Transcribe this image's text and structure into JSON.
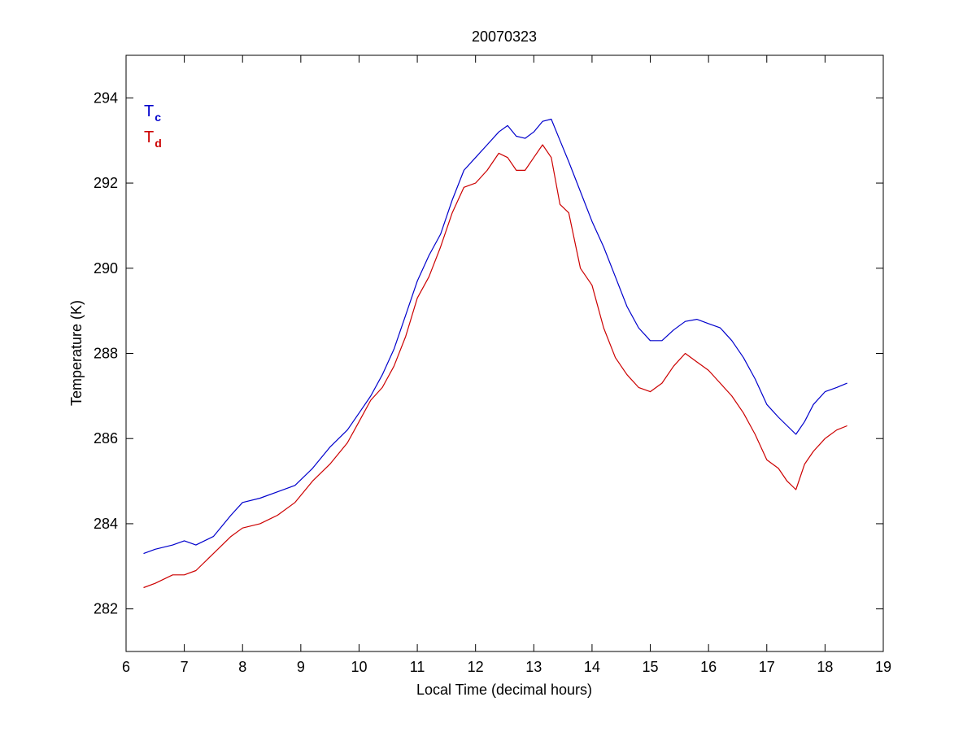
{
  "chart_data": {
    "type": "line",
    "title": "20070323",
    "xlabel": "Local Time (decimal hours)",
    "ylabel": "Temperature (K)",
    "xlim": [
      6,
      19
    ],
    "ylim": [
      281,
      295
    ],
    "xticks": [
      6,
      7,
      8,
      9,
      10,
      11,
      12,
      13,
      14,
      15,
      16,
      17,
      18,
      19
    ],
    "yticks": [
      282,
      284,
      286,
      288,
      290,
      292,
      294
    ],
    "grid": false,
    "legend_placement": "top-left",
    "series": [
      {
        "name": "Tc",
        "legend_main": "T",
        "legend_sub": "c",
        "color": "#0000cc",
        "x": [
          6.3,
          6.5,
          6.8,
          7.0,
          7.2,
          7.5,
          7.8,
          8.0,
          8.3,
          8.6,
          8.9,
          9.2,
          9.5,
          9.8,
          10.0,
          10.2,
          10.4,
          10.6,
          10.8,
          11.0,
          11.2,
          11.4,
          11.6,
          11.8,
          12.0,
          12.2,
          12.4,
          12.55,
          12.7,
          12.85,
          13.0,
          13.15,
          13.3,
          13.45,
          13.6,
          13.8,
          14.0,
          14.2,
          14.4,
          14.6,
          14.8,
          15.0,
          15.2,
          15.4,
          15.6,
          15.8,
          16.0,
          16.2,
          16.4,
          16.6,
          16.8,
          17.0,
          17.2,
          17.35,
          17.5,
          17.65,
          17.8,
          18.0,
          18.2,
          18.38
        ],
        "y": [
          283.3,
          283.4,
          283.5,
          283.6,
          283.5,
          283.7,
          284.2,
          284.5,
          284.6,
          284.75,
          284.9,
          285.3,
          285.8,
          286.2,
          286.6,
          287.0,
          287.5,
          288.1,
          288.9,
          289.7,
          290.3,
          290.8,
          291.6,
          292.3,
          292.6,
          292.9,
          293.2,
          293.35,
          293.1,
          293.05,
          293.2,
          293.45,
          293.5,
          293.0,
          292.5,
          291.8,
          291.1,
          290.5,
          289.8,
          289.1,
          288.6,
          288.3,
          288.3,
          288.55,
          288.75,
          288.8,
          288.7,
          288.6,
          288.3,
          287.9,
          287.4,
          286.8,
          286.5,
          286.3,
          286.1,
          286.4,
          286.8,
          287.1,
          287.2,
          287.3
        ]
      },
      {
        "name": "Td",
        "legend_main": "T",
        "legend_sub": "d",
        "color": "#cc0000",
        "x": [
          6.3,
          6.5,
          6.8,
          7.0,
          7.2,
          7.5,
          7.8,
          8.0,
          8.3,
          8.6,
          8.9,
          9.2,
          9.5,
          9.8,
          10.0,
          10.2,
          10.4,
          10.6,
          10.8,
          11.0,
          11.2,
          11.4,
          11.6,
          11.8,
          12.0,
          12.2,
          12.4,
          12.55,
          12.7,
          12.85,
          13.0,
          13.15,
          13.3,
          13.45,
          13.6,
          13.8,
          14.0,
          14.2,
          14.4,
          14.6,
          14.8,
          15.0,
          15.2,
          15.4,
          15.6,
          15.8,
          16.0,
          16.2,
          16.4,
          16.6,
          16.8,
          17.0,
          17.2,
          17.35,
          17.5,
          17.65,
          17.8,
          18.0,
          18.2,
          18.38
        ],
        "y": [
          282.5,
          282.6,
          282.8,
          282.8,
          282.9,
          283.3,
          283.7,
          283.9,
          284.0,
          284.2,
          284.5,
          285.0,
          285.4,
          285.9,
          286.4,
          286.9,
          287.2,
          287.7,
          288.4,
          289.3,
          289.8,
          290.5,
          291.3,
          291.9,
          292.0,
          292.3,
          292.7,
          292.6,
          292.3,
          292.3,
          292.6,
          292.9,
          292.6,
          291.5,
          291.3,
          290.0,
          289.6,
          288.6,
          287.9,
          287.5,
          287.2,
          287.1,
          287.3,
          287.7,
          288.0,
          287.8,
          287.6,
          287.3,
          287.0,
          286.6,
          286.1,
          285.5,
          285.3,
          285.0,
          284.8,
          285.4,
          285.7,
          286.0,
          286.2,
          286.3
        ]
      }
    ]
  }
}
